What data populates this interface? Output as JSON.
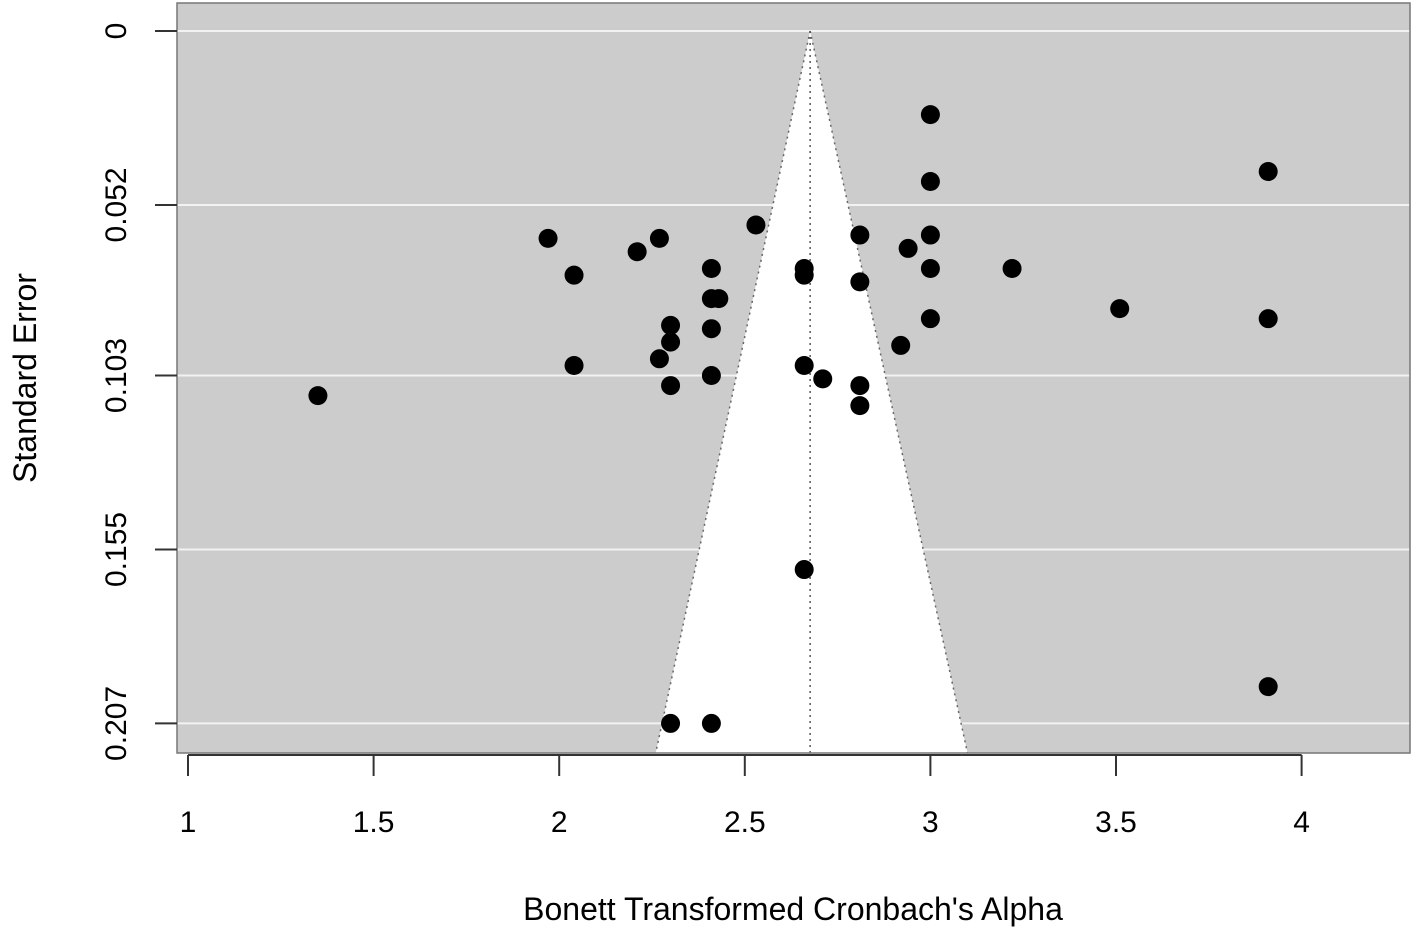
{
  "chart_data": {
    "type": "scatter",
    "subtype": "funnel-plot",
    "title": "",
    "xlabel": "Bonett Transformed Cronbach's Alpha",
    "ylabel": "Standard Error",
    "xlim": [
      0.97,
      4.3
    ],
    "ylim": [
      0.216,
      -0.008
    ],
    "y_axis_inverted": true,
    "x_ticks": [
      1,
      1.5,
      2,
      2.5,
      3,
      3.5,
      4
    ],
    "x_tick_labels": [
      "1",
      "1.5",
      "2",
      "2.5",
      "3",
      "3.5",
      "4"
    ],
    "y_ticks": [
      0,
      0.052,
      0.103,
      0.155,
      0.207
    ],
    "y_tick_labels": [
      "0",
      "0.052",
      "0.103",
      "0.155",
      "0.207"
    ],
    "grid": "horizontal white lines at y ticks",
    "legend": null,
    "pooled_estimate": 2.676,
    "funnel": {
      "apex": [
        2.676,
        0
      ],
      "base_se": 0.216,
      "base_left": 2.26,
      "base_right": 3.1,
      "style": "white region with dotted gray edges"
    },
    "colors": {
      "panel_background": "#cccccc",
      "funnel_fill": "#ffffff",
      "gridline": "#f2f2f2",
      "point": "#000000",
      "funnel_line": "#666666",
      "axis": "#333333"
    },
    "points": [
      {
        "x": 1.35,
        "se": 0.109
      },
      {
        "x": 1.97,
        "se": 0.062
      },
      {
        "x": 2.04,
        "se": 0.073
      },
      {
        "x": 2.04,
        "se": 0.1
      },
      {
        "x": 2.21,
        "se": 0.066
      },
      {
        "x": 2.27,
        "se": 0.062
      },
      {
        "x": 2.27,
        "se": 0.098
      },
      {
        "x": 2.3,
        "se": 0.088
      },
      {
        "x": 2.3,
        "se": 0.093
      },
      {
        "x": 2.3,
        "se": 0.106
      },
      {
        "x": 2.3,
        "se": 0.207
      },
      {
        "x": 2.41,
        "se": 0.071
      },
      {
        "x": 2.41,
        "se": 0.08
      },
      {
        "x": 2.41,
        "se": 0.089
      },
      {
        "x": 2.41,
        "se": 0.103
      },
      {
        "x": 2.41,
        "se": 0.207
      },
      {
        "x": 2.43,
        "se": 0.08
      },
      {
        "x": 2.53,
        "se": 0.058
      },
      {
        "x": 2.66,
        "se": 0.071
      },
      {
        "x": 2.66,
        "se": 0.073
      },
      {
        "x": 2.66,
        "se": 0.1
      },
      {
        "x": 2.66,
        "se": 0.161
      },
      {
        "x": 2.71,
        "se": 0.104
      },
      {
        "x": 2.81,
        "se": 0.061
      },
      {
        "x": 2.81,
        "se": 0.075
      },
      {
        "x": 2.81,
        "se": 0.106
      },
      {
        "x": 2.81,
        "se": 0.112
      },
      {
        "x": 2.92,
        "se": 0.094
      },
      {
        "x": 2.94,
        "se": 0.065
      },
      {
        "x": 3.0,
        "se": 0.025
      },
      {
        "x": 3.0,
        "se": 0.045
      },
      {
        "x": 3.0,
        "se": 0.061
      },
      {
        "x": 3.0,
        "se": 0.071
      },
      {
        "x": 3.0,
        "se": 0.086
      },
      {
        "x": 3.22,
        "se": 0.071
      },
      {
        "x": 3.51,
        "se": 0.083
      },
      {
        "x": 3.91,
        "se": 0.042
      },
      {
        "x": 3.91,
        "se": 0.086
      },
      {
        "x": 3.91,
        "se": 0.196
      }
    ]
  }
}
